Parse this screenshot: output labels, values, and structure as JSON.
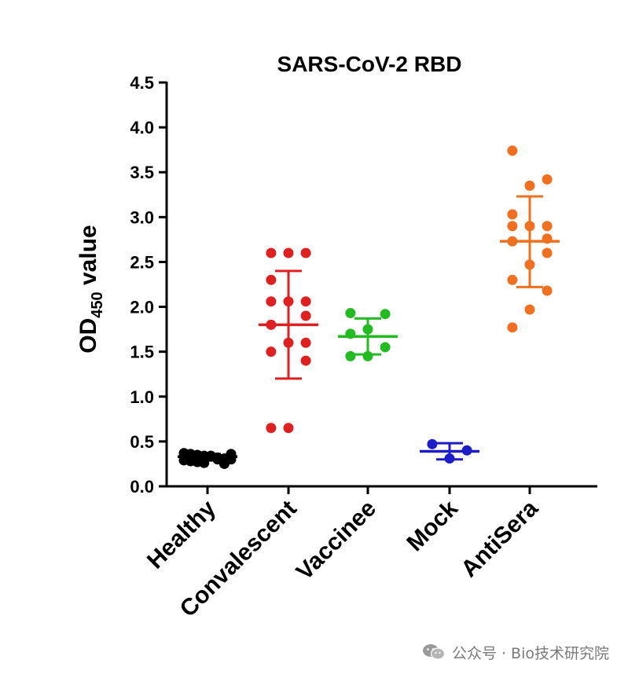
{
  "chart_data": {
    "type": "scatter",
    "title": "SARS-CoV-2 RBD",
    "ylabel_main": "OD",
    "ylabel_sub": "450",
    "ylabel_rest": " value",
    "ylim": [
      0,
      4.5
    ],
    "yticks": [
      "0.0",
      "0.5",
      "1.0",
      "1.5",
      "2.0",
      "2.5",
      "3.0",
      "3.5",
      "4.0",
      "4.5"
    ],
    "categories": [
      "Healthy",
      "Convalescent",
      "Vaccinee",
      "Mock",
      "AntiSera"
    ],
    "groups": [
      {
        "name": "Healthy",
        "color": "#000000",
        "mean": 0.33,
        "sd_low": 0.3,
        "sd_high": 0.36,
        "points": [
          0.37,
          0.36,
          0.35,
          0.34,
          0.33,
          0.32,
          0.31,
          0.3,
          0.29,
          0.28,
          0.27,
          0.26,
          0.34,
          0.3,
          0.25,
          0.36
        ]
      },
      {
        "name": "Convalescent",
        "color": "#e02020",
        "mean": 1.8,
        "sd_low": 1.2,
        "sd_high": 2.4,
        "points": [
          2.6,
          2.6,
          2.6,
          2.3,
          2.06,
          2.06,
          2.06,
          1.9,
          1.8,
          1.6,
          1.6,
          1.5,
          1.4,
          0.65,
          0.65
        ]
      },
      {
        "name": "Vaccinee",
        "color": "#22bb22",
        "mean": 1.67,
        "sd_low": 1.47,
        "sd_high": 1.87,
        "points": [
          1.93,
          1.92,
          1.75,
          1.7,
          1.55,
          1.45,
          1.45
        ]
      },
      {
        "name": "Mock",
        "color": "#1c1cc8",
        "mean": 0.39,
        "sd_low": 0.3,
        "sd_high": 0.48,
        "points": [
          0.47,
          0.4,
          0.31
        ]
      },
      {
        "name": "AntiSera",
        "color": "#f07020",
        "mean": 2.73,
        "sd_low": 2.22,
        "sd_high": 3.23,
        "points": [
          3.74,
          3.42,
          3.35,
          3.03,
          2.9,
          2.9,
          2.9,
          2.76,
          2.73,
          2.6,
          2.47,
          2.3,
          2.18,
          1.97,
          1.77
        ]
      }
    ]
  },
  "watermark": {
    "text": "公众号 · Bio技术研究院",
    "icon": "wechat-icon"
  }
}
